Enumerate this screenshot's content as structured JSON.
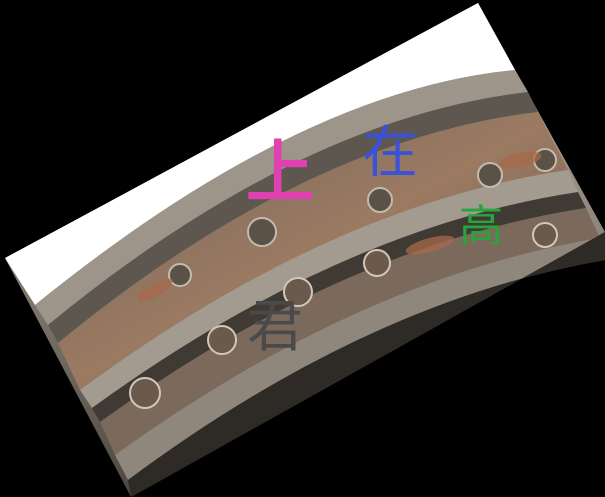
{
  "overlay_text": [
    {
      "text": "上",
      "color": "#e040b0"
    },
    {
      "text": "在",
      "color": "#3a52d8"
    },
    {
      "text": "高",
      "color": "#27a53a"
    },
    {
      "text": "君",
      "color": "#4a4a4a"
    }
  ],
  "colors": {
    "background": "#000000",
    "sky": "#ffffff",
    "stone_light": "#a9a196",
    "stone_mid": "#7d756a",
    "stone_dark": "#3a3530",
    "terracotta": "#a8684a"
  }
}
